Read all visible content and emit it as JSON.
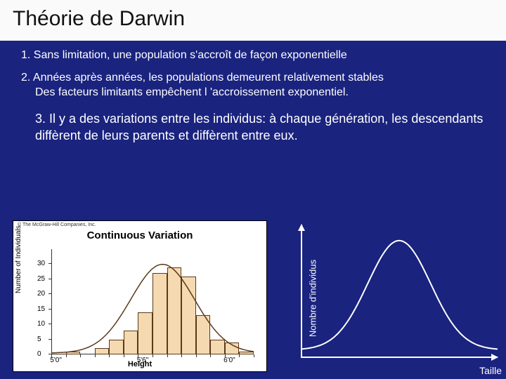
{
  "title": "Théorie de Darwin",
  "point1": "1. Sans limitation, une population s'accroît de façon exponentielle",
  "point2_line1": "2. Années après années, les populations demeurent relativement stables",
  "point2_line2": "Des facteurs limitants empêchent l 'accroissement exponentiel.",
  "point3": "3. Il y a des variations entre les individus: à chaque génération, les descendants diffèrent de leurs parents et diffèrent entre eux.",
  "chart_left": {
    "type": "histogram",
    "title": "Continuous Variation",
    "copyright": "© The McGraw-Hill Companies, Inc.",
    "ylabel": "Number of Individuals",
    "xlabel": "Height",
    "ylim": [
      0,
      35
    ],
    "yticks": [
      0,
      5,
      10,
      15,
      20,
      25,
      30
    ],
    "xticks": [
      "5'0\"",
      "5'6\"",
      "6'0\""
    ],
    "xticks_full": [
      "5'0\"",
      "5'1\"",
      "5'2\"",
      "5'3\"",
      "5'4\"",
      "5'5\"",
      "5'6\"",
      "5'7\"",
      "5'8\"",
      "5'9\"",
      "5'10\"",
      "5'11\"",
      "6'0\"",
      "6'1\""
    ],
    "bar_values": [
      0,
      1,
      0,
      2,
      5,
      8,
      14,
      27,
      29,
      26,
      13,
      5,
      4,
      1
    ],
    "bar_color": "#f5d9b0",
    "bar_border": "#5b3a1a",
    "curve_color": "#5b3a1a",
    "background_color": "#ffffff",
    "title_fontsize": 15,
    "label_fontsize": 10
  },
  "chart_right": {
    "type": "line",
    "ylabel": "Nombre d'individus",
    "xlabel": "Taille",
    "curve_color": "#ffffff",
    "axis_color": "#ffffff",
    "line_width": 2,
    "label_fontsize": 13,
    "curve_points": [
      [
        0,
        12
      ],
      [
        30,
        14
      ],
      [
        60,
        20
      ],
      [
        90,
        35
      ],
      [
        120,
        70
      ],
      [
        150,
        115
      ],
      [
        180,
        150
      ],
      [
        210,
        160
      ],
      [
        240,
        150
      ],
      [
        270,
        115
      ],
      [
        300,
        70
      ],
      [
        330,
        35
      ],
      [
        360,
        20
      ],
      [
        390,
        14
      ],
      [
        420,
        12
      ]
    ]
  },
  "colors": {
    "slide_background": "#1a237e",
    "title_band_background": "#fafafa",
    "body_text": "#ffffff",
    "title_text": "#111111"
  }
}
